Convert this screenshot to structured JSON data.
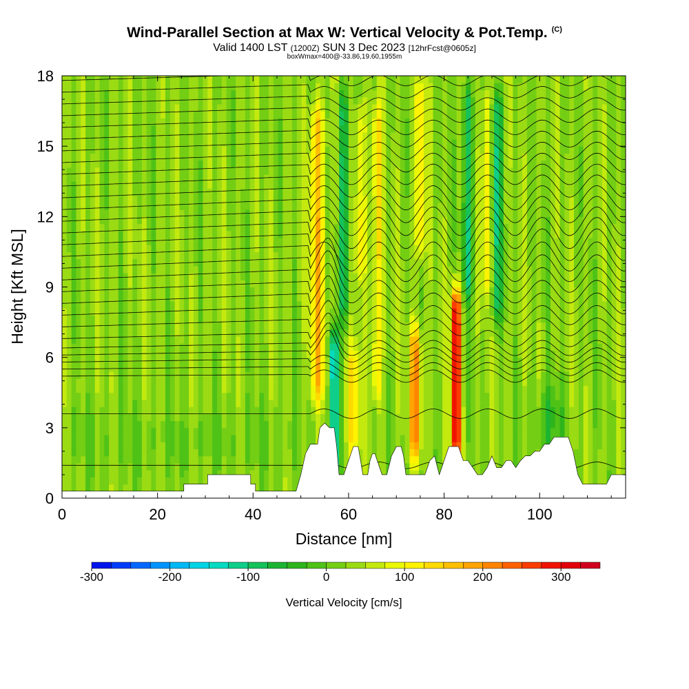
{
  "header": {
    "title": "Wind-Parallel Section at Max W: Vertical Velocity & Pot.Temp.",
    "copyright": "(C)",
    "valid_a": "Valid 1400 LST",
    "valid_b": "(1200Z)",
    "valid_c": "SUN 3 Dec 2023",
    "valid_d": "[12hrFcst@0605z]",
    "subtitle2": "boxWmax=400@-33.86,19.60,1955m"
  },
  "chart_data": {
    "type": "heatmap",
    "xlabel": "Distance [nm]",
    "ylabel": "Height [Kft MSL]",
    "xlim": [
      0,
      118
    ],
    "ylim": [
      0,
      18
    ],
    "x_ticks": [
      "0",
      "20",
      "40",
      "60",
      "80",
      "100"
    ],
    "x_tick_values": [
      0,
      20,
      40,
      60,
      80,
      100
    ],
    "y_ticks": [
      "0",
      "3",
      "6",
      "9",
      "12",
      "15",
      "18"
    ],
    "y_tick_values": [
      0,
      3,
      6,
      9,
      12,
      15,
      18
    ],
    "colorbar": {
      "label": "Vertical Velocity [cm/s]",
      "min": -300,
      "max": 350,
      "step": 25,
      "tick_labels": [
        "-300",
        "-200",
        "-100",
        "0",
        "100",
        "200",
        "300"
      ],
      "tick_values": [
        -300,
        -200,
        -100,
        0,
        100,
        200,
        300
      ]
    },
    "terrain_profile": [
      [
        0,
        0.3
      ],
      [
        10,
        0.3
      ],
      [
        20,
        0.3
      ],
      [
        25.5,
        0.3
      ],
      [
        25.5,
        0.6
      ],
      [
        30.5,
        0.6
      ],
      [
        30.5,
        1.0
      ],
      [
        39.5,
        1.0
      ],
      [
        39.5,
        0.6
      ],
      [
        40.5,
        0.6
      ],
      [
        40.5,
        0.3
      ],
      [
        49,
        0.3
      ],
      [
        50,
        1.0
      ],
      [
        51,
        1.9
      ],
      [
        52,
        2.3
      ],
      [
        53.5,
        2.3
      ],
      [
        54,
        3.0
      ],
      [
        55,
        3.2
      ],
      [
        56,
        3.0
      ],
      [
        57,
        3.0
      ],
      [
        57.5,
        2.2
      ],
      [
        58,
        1.0
      ],
      [
        59,
        1.0
      ],
      [
        60,
        1.6
      ],
      [
        61,
        2.2
      ],
      [
        62,
        2.2
      ],
      [
        62.5,
        1.6
      ],
      [
        63,
        1.0
      ],
      [
        64,
        1.0
      ],
      [
        64.5,
        1.6
      ],
      [
        65,
        1.9
      ],
      [
        65.5,
        1.9
      ],
      [
        66,
        1.6
      ],
      [
        67,
        1.0
      ],
      [
        68,
        1.0
      ],
      [
        69,
        1.8
      ],
      [
        70,
        2.2
      ],
      [
        71,
        2.2
      ],
      [
        71.5,
        1.8
      ],
      [
        72,
        1.0
      ],
      [
        76,
        1.0
      ],
      [
        77,
        1.6
      ],
      [
        78,
        1.8
      ],
      [
        79,
        1.0
      ],
      [
        80,
        1.6
      ],
      [
        81,
        2.2
      ],
      [
        83,
        2.2
      ],
      [
        84,
        1.6
      ],
      [
        85,
        1.6
      ],
      [
        86,
        1.3
      ],
      [
        87,
        1.0
      ],
      [
        88,
        1.0
      ],
      [
        89,
        1.3
      ],
      [
        90,
        1.8
      ],
      [
        91,
        1.3
      ],
      [
        92,
        1.3
      ],
      [
        93,
        1.6
      ],
      [
        94,
        1.6
      ],
      [
        95,
        1.3
      ],
      [
        96,
        1.6
      ],
      [
        97,
        1.8
      ],
      [
        98,
        1.8
      ],
      [
        99,
        2.0
      ],
      [
        100,
        2.0
      ],
      [
        101,
        2.3
      ],
      [
        102,
        2.3
      ],
      [
        103,
        2.6
      ],
      [
        106,
        2.6
      ],
      [
        107,
        2.0
      ],
      [
        108,
        1.0
      ],
      [
        109,
        0.6
      ],
      [
        114,
        0.6
      ],
      [
        115,
        1.0
      ],
      [
        118,
        1.0
      ]
    ],
    "w_features": [
      {
        "x": 53.5,
        "width": 1.6,
        "zmin": 3,
        "zmax": 18,
        "w": 130
      },
      {
        "x": 57,
        "width": 0.8,
        "zmin": 1,
        "zmax": 7,
        "w": -230
      },
      {
        "x": 59,
        "width": 1.0,
        "zmin": 7,
        "zmax": 18,
        "w": -120
      },
      {
        "x": 61,
        "width": 1.5,
        "zmin": 2,
        "zmax": 6,
        "w": 100
      },
      {
        "x": 62.5,
        "width": 1.0,
        "zmin": 9,
        "zmax": 17,
        "w": 90
      },
      {
        "x": 66,
        "width": 1.0,
        "zmin": 3,
        "zmax": 18,
        "w": 110
      },
      {
        "x": 74,
        "width": 1.2,
        "zmin": 2,
        "zmax": 7,
        "w": 180
      },
      {
        "x": 75,
        "width": 1.0,
        "zmin": 10,
        "zmax": 18,
        "w": 110
      },
      {
        "x": 82.5,
        "width": 0.9,
        "zmin": 1.5,
        "zmax": 9,
        "w": 330
      },
      {
        "x": 85,
        "width": 1.2,
        "zmin": 8,
        "zmax": 18,
        "w": -110
      },
      {
        "x": 89,
        "width": 1.0,
        "zmin": 8,
        "zmax": 18,
        "w": 100
      },
      {
        "x": 91,
        "width": 1.2,
        "zmin": 7,
        "zmax": 18,
        "w": -120
      },
      {
        "x": 102,
        "width": 3.0,
        "zmin": 2,
        "zmax": 4,
        "w": -60
      }
    ],
    "theta_contour_levels_kft": [
      1.4,
      3.6,
      5.2,
      5.5,
      5.8,
      6.1,
      6.4,
      6.8,
      7.3,
      7.8,
      8.3,
      8.8,
      9.3,
      9.8,
      10.3,
      10.8,
      11.3,
      11.8,
      12.3,
      12.8,
      13.3,
      13.8,
      14.3,
      14.8,
      15.3,
      15.8,
      16.3,
      16.8,
      17.3,
      17.8
    ]
  }
}
